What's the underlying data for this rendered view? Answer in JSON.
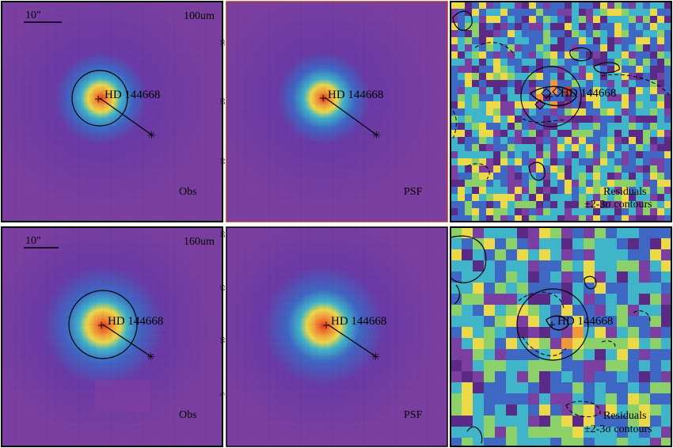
{
  "figure": {
    "rows": [
      {
        "band": "100um",
        "scale_bar": "10\"",
        "panels": [
          {
            "kind": "obs",
            "label": "Obs",
            "target": "HD 144668"
          },
          {
            "kind": "psf",
            "label": "PSF",
            "target": "HD 144668"
          },
          {
            "kind": "residual",
            "label": "Residuals",
            "sublabel": "±2-3σ contours",
            "target": "HD 144668"
          }
        ]
      },
      {
        "band": "160um",
        "scale_bar": "10\"",
        "panels": [
          {
            "kind": "obs",
            "label": "Obs",
            "target": "HD 144668"
          },
          {
            "kind": "psf",
            "label": "PSF",
            "target": "HD 144668"
          },
          {
            "kind": "residual",
            "label": "Residuals",
            "sublabel": "±2-3σ contours",
            "target": "HD 144668"
          }
        ]
      }
    ],
    "psf_axis_ticks": {
      "row1": [
        "30",
        "20",
        "10"
      ],
      "row2": [
        "20",
        "15",
        "10",
        "5"
      ]
    },
    "colors": {
      "background": "#7a3fa0",
      "deep": "#5a2a86",
      "blue": "#3f67c4",
      "cyan": "#40b4c8",
      "green": "#8cd06a",
      "yellow": "#ecd94a",
      "orange": "#f2963a",
      "red": "#e33a1f"
    }
  }
}
